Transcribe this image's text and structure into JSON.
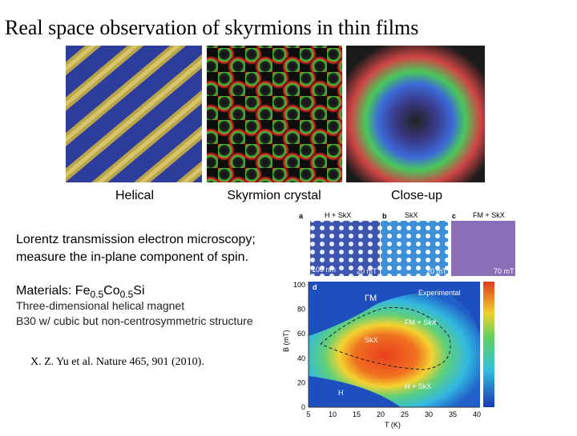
{
  "slide": {
    "title": "Real space observation of skyrmions in thin films",
    "images": [
      {
        "caption": "Helical"
      },
      {
        "caption": "Skyrmion crystal"
      },
      {
        "caption": "Close-up"
      }
    ],
    "text": {
      "line1": "Lorentz transmission electron microscopy;",
      "line2": "measure the in-plane component of spin.",
      "materials": [
        "Materials: Fe",
        "0.5",
        "Co",
        "0.5",
        "Si"
      ],
      "detail1": "Three-dimensional helical magnet",
      "detail2": "B30 w/ cubic but non-centrosymmetric structure",
      "citation": "X. Z. Yu et al. Nature 465, 901 (2010)."
    },
    "figure": {
      "panels": [
        {
          "letter": "a",
          "phase": "H + SkX",
          "scale": "100 nm",
          "field": "20 mT"
        },
        {
          "letter": "b",
          "phase": "SkX",
          "field": "20 mT"
        },
        {
          "letter": "c",
          "phase": "FM + SkX",
          "field": "70 mT"
        }
      ],
      "diagram": {
        "letter": "d",
        "legend": "Experimental",
        "regions": [
          "ΓM",
          "FM + SkX",
          "SkX",
          "H + SkX",
          "H"
        ],
        "x_label": "T (K)",
        "y_label": "B (mT)",
        "xticks": [
          "5",
          "10",
          "15",
          "20",
          "25",
          "30",
          "35",
          "40"
        ],
        "yticks": [
          "0",
          "20",
          "40",
          "60",
          "80",
          "100"
        ]
      }
    }
  }
}
